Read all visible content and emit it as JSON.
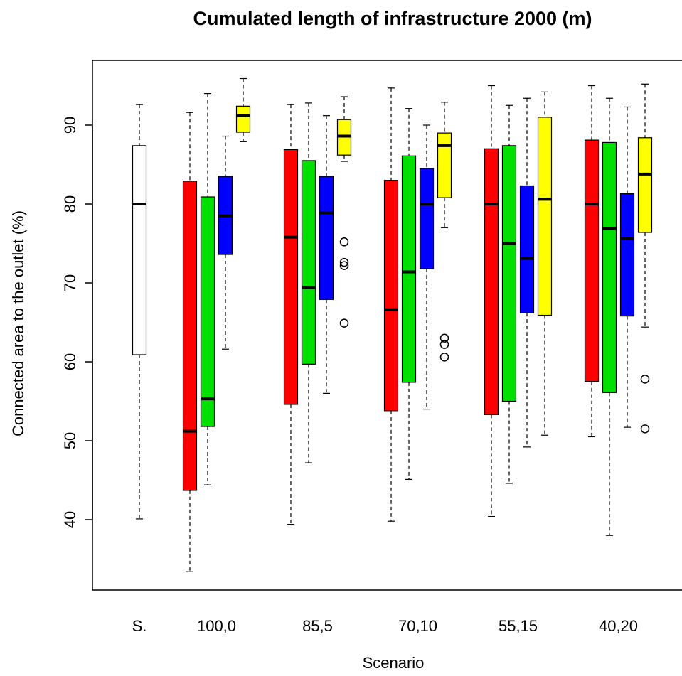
{
  "chart_data": {
    "type": "boxplot",
    "title": "Cumulated length of infrastructure  2000  (m)",
    "xlabel": "Scenario",
    "ylabel": "Connected area to the outlet (%)",
    "ylim": [
      29,
      97
    ],
    "yticks": [
      40,
      50,
      60,
      70,
      80,
      90
    ],
    "grid": false,
    "legend": "none",
    "categories": [
      "S.",
      "100,0",
      "85,5",
      "70,10",
      "55,15",
      "40,20"
    ],
    "boxes": [
      {
        "group": "S.",
        "color": "#ffffff",
        "whisker_low": 40.1,
        "q1": 60.9,
        "median": 80.0,
        "q3": 87.4,
        "whisker_high": 92.6,
        "outliers": []
      },
      {
        "group": "100,0",
        "color": "#ff0000",
        "whisker_low": 33.4,
        "q1": 43.7,
        "median": 51.2,
        "q3": 82.9,
        "whisker_high": 91.6,
        "outliers": []
      },
      {
        "group": "100,0",
        "color": "#00e000",
        "whisker_low": 44.4,
        "q1": 51.8,
        "median": 55.3,
        "q3": 80.9,
        "whisker_high": 94.0,
        "outliers": []
      },
      {
        "group": "100,0",
        "color": "#0000ff",
        "whisker_low": 61.6,
        "q1": 73.6,
        "median": 78.5,
        "q3": 83.5,
        "whisker_high": 88.6,
        "outliers": []
      },
      {
        "group": "100,0",
        "color": "#ffff00",
        "whisker_low": 87.9,
        "q1": 89.1,
        "median": 91.2,
        "q3": 92.4,
        "whisker_high": 95.9,
        "outliers": []
      },
      {
        "group": "85,5",
        "color": "#ff0000",
        "whisker_low": 39.4,
        "q1": 54.6,
        "median": 75.8,
        "q3": 86.9,
        "whisker_high": 92.6,
        "outliers": []
      },
      {
        "group": "85,5",
        "color": "#00e000",
        "whisker_low": 47.2,
        "q1": 59.7,
        "median": 69.4,
        "q3": 85.5,
        "whisker_high": 92.8,
        "outliers": []
      },
      {
        "group": "85,5",
        "color": "#0000ff",
        "whisker_low": 56.0,
        "q1": 67.9,
        "median": 78.9,
        "q3": 83.5,
        "whisker_high": 91.2,
        "outliers": []
      },
      {
        "group": "85,5",
        "color": "#ffff00",
        "whisker_low": 85.4,
        "q1": 86.2,
        "median": 88.6,
        "q3": 90.7,
        "whisker_high": 93.6,
        "outliers": [
          75.2,
          72.6,
          72.2,
          64.9
        ]
      },
      {
        "group": "70,10",
        "color": "#ff0000",
        "whisker_low": 39.8,
        "q1": 53.8,
        "median": 66.6,
        "q3": 83.0,
        "whisker_high": 94.7,
        "outliers": []
      },
      {
        "group": "70,10",
        "color": "#00e000",
        "whisker_low": 45.1,
        "q1": 57.4,
        "median": 71.4,
        "q3": 86.1,
        "whisker_high": 92.1,
        "outliers": []
      },
      {
        "group": "70,10",
        "color": "#0000ff",
        "whisker_low": 54.0,
        "q1": 71.8,
        "median": 80.0,
        "q3": 84.5,
        "whisker_high": 90.0,
        "outliers": []
      },
      {
        "group": "70,10",
        "color": "#ffff00",
        "whisker_low": 77.0,
        "q1": 80.8,
        "median": 87.4,
        "q3": 89.0,
        "whisker_high": 92.9,
        "outliers": [
          63.0,
          62.2,
          60.6
        ]
      },
      {
        "group": "55,15",
        "color": "#ff0000",
        "whisker_low": 40.4,
        "q1": 53.3,
        "median": 80.0,
        "q3": 87.0,
        "whisker_high": 95.0,
        "outliers": []
      },
      {
        "group": "55,15",
        "color": "#00e000",
        "whisker_low": 44.6,
        "q1": 55.0,
        "median": 75.0,
        "q3": 87.4,
        "whisker_high": 92.5,
        "outliers": []
      },
      {
        "group": "55,15",
        "color": "#0000ff",
        "whisker_low": 49.2,
        "q1": 66.2,
        "median": 73.1,
        "q3": 82.3,
        "whisker_high": 93.4,
        "outliers": []
      },
      {
        "group": "55,15",
        "color": "#ffff00",
        "whisker_low": 50.7,
        "q1": 65.9,
        "median": 80.6,
        "q3": 91.0,
        "whisker_high": 94.2,
        "outliers": []
      },
      {
        "group": "40,20",
        "color": "#ff0000",
        "whisker_low": 50.5,
        "q1": 57.5,
        "median": 80.0,
        "q3": 88.1,
        "whisker_high": 95.0,
        "outliers": []
      },
      {
        "group": "40,20",
        "color": "#00e000",
        "whisker_low": 38.0,
        "q1": 56.1,
        "median": 76.9,
        "q3": 87.8,
        "whisker_high": 93.4,
        "outliers": []
      },
      {
        "group": "40,20",
        "color": "#0000ff",
        "whisker_low": 51.7,
        "q1": 65.8,
        "median": 75.6,
        "q3": 81.3,
        "whisker_high": 92.3,
        "outliers": []
      },
      {
        "group": "40,20",
        "color": "#ffff00",
        "whisker_low": 64.4,
        "q1": 76.4,
        "median": 83.8,
        "q3": 88.4,
        "whisker_high": 95.2,
        "outliers": [
          57.8,
          51.5
        ]
      }
    ]
  }
}
